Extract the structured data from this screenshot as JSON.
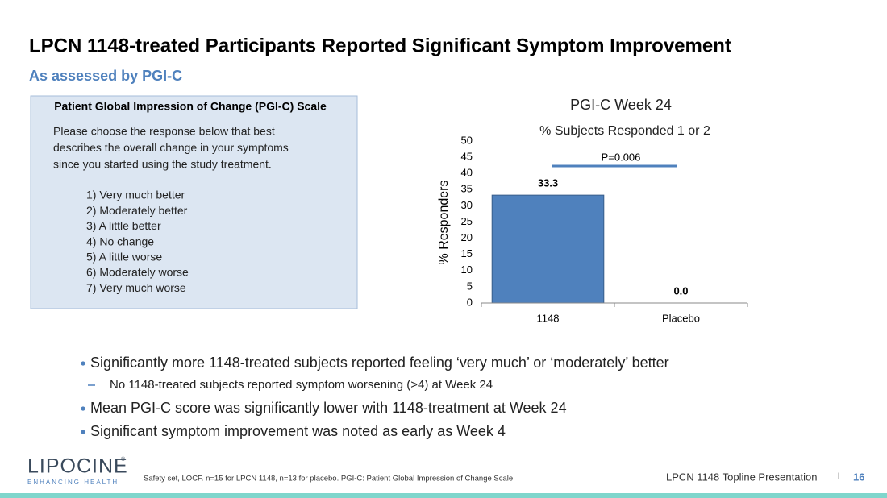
{
  "header": {
    "title": "LPCN 1148-treated Participants Reported Significant Symptom Improvement",
    "subtitle": "As assessed by PGI-C"
  },
  "scale_box": {
    "title": "Patient Global Impression of Change (PGI-C) Scale",
    "intro": [
      "Please choose the response below that best",
      "describes the overall change in your symptoms",
      "since you started using the study treatment."
    ],
    "options": [
      "1) Very much better",
      "2) Moderately better",
      "3) A little better",
      "4) No change",
      "5) A little worse",
      "6) Moderately worse",
      "7) Very much worse"
    ]
  },
  "chart_data": {
    "type": "bar",
    "title": "PGI-C Week 24",
    "subtitle": "% Subjects Responded 1 or 2",
    "y_label": "% Responders",
    "categories": [
      "1148",
      "Placebo"
    ],
    "values": [
      33.3,
      0
    ],
    "value_labels": [
      "33.3",
      "0.0"
    ],
    "color": "#4f81bd",
    "ylim": [
      0,
      50
    ],
    "yticks": [
      0,
      5,
      10,
      15,
      20,
      25,
      30,
      35,
      40,
      45,
      50
    ],
    "grid": false,
    "annotation": "P=0.006"
  },
  "bullets": [
    {
      "text": "Significantly more 1148-treated subjects reported feeling ‘very much’ or ‘moderately’ better",
      "level": 1
    },
    {
      "text": "No 1148-treated subjects reported symptom worsening (>4) at Week 24",
      "level": 2
    },
    {
      "text": "Mean PGI-C score was significantly lower with 1148-treatment at Week 24",
      "level": 1
    },
    {
      "text": "Significant symptom improvement was noted as early as Week 4",
      "level": 1
    }
  ],
  "logo": {
    "name": "LIPOCINE",
    "mark": "®",
    "tagline": "ENHANCING HEALTH"
  },
  "footnote": "Safety set, LOCF. n=15 for LPCN 1148, n=13 for placebo. PGI-C: Patient Global Impression of Change Scale",
  "footer": {
    "text": "LPCN 1148 Topline Presentation",
    "separator": "I",
    "page": "16"
  }
}
